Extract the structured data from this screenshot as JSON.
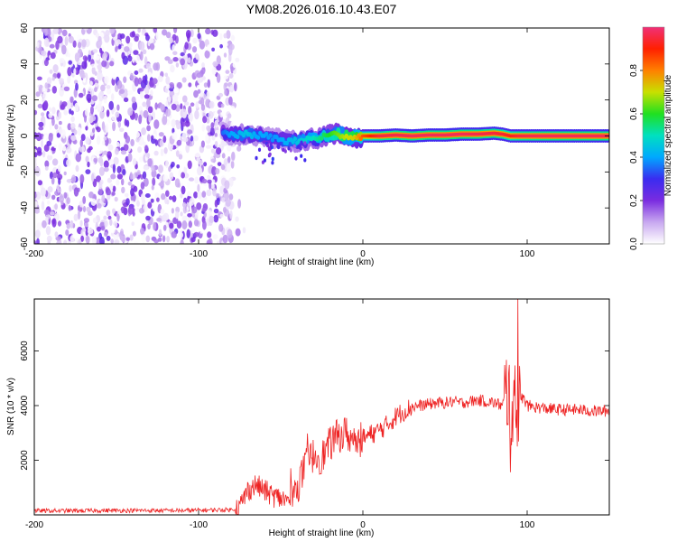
{
  "title": "YM08.2026.016.10.43.E07",
  "chart_data": [
    {
      "type": "heatmap",
      "title": "YM08.2026.016.10.43.E07",
      "xlabel": "Height of straight line (km)",
      "ylabel": "Frequency (Hz)",
      "xlim": [
        -200,
        150
      ],
      "ylim": [
        -60,
        60
      ],
      "xticks": [
        {
          "value": -200,
          "label": "-200"
        },
        {
          "value": -100,
          "label": "-100"
        },
        {
          "value": 0,
          "label": "0"
        },
        {
          "value": 100,
          "label": "100"
        }
      ],
      "yticks": [
        {
          "value": 60,
          "label": "60"
        },
        {
          "value": 40,
          "label": "40"
        },
        {
          "value": 20,
          "label": "20"
        },
        {
          "value": 0,
          "label": "0"
        },
        {
          "value": -20,
          "label": "-20"
        },
        {
          "value": -40,
          "label": "-40"
        },
        {
          "value": -60,
          "label": "-60"
        }
      ],
      "noise_region_km": [
        -200,
        -78
      ],
      "noise_amplitude_range": [
        0.0,
        0.25
      ],
      "ridge": [
        {
          "x": -85,
          "f": 1.5,
          "a": 0.35
        },
        {
          "x": -80,
          "f": 1.0,
          "a": 0.4
        },
        {
          "x": -75,
          "f": 0.5,
          "a": 0.42
        },
        {
          "x": -70,
          "f": 1.0,
          "a": 0.45
        },
        {
          "x": -65,
          "f": 0.5,
          "a": 0.4
        },
        {
          "x": -60,
          "f": 0.0,
          "a": 0.4
        },
        {
          "x": -55,
          "f": -1.0,
          "a": 0.38
        },
        {
          "x": -50,
          "f": -2.0,
          "a": 0.4
        },
        {
          "x": -45,
          "f": -3.0,
          "a": 0.42
        },
        {
          "x": -40,
          "f": -3.0,
          "a": 0.45
        },
        {
          "x": -35,
          "f": -2.0,
          "a": 0.48
        },
        {
          "x": -30,
          "f": -1.5,
          "a": 0.5
        },
        {
          "x": -25,
          "f": -0.5,
          "a": 0.55
        },
        {
          "x": -20,
          "f": 0.5,
          "a": 0.6
        },
        {
          "x": -15,
          "f": 1.0,
          "a": 0.65
        },
        {
          "x": -10,
          "f": 0.0,
          "a": 0.7
        },
        {
          "x": -5,
          "f": -1.0,
          "a": 0.72
        },
        {
          "x": 0,
          "f": 0.0,
          "a": 0.85
        },
        {
          "x": 10,
          "f": 0.0,
          "a": 0.95
        },
        {
          "x": 20,
          "f": 0.5,
          "a": 0.96
        },
        {
          "x": 30,
          "f": 0.0,
          "a": 0.97
        },
        {
          "x": 40,
          "f": 0.5,
          "a": 0.97
        },
        {
          "x": 50,
          "f": 0.5,
          "a": 0.97
        },
        {
          "x": 60,
          "f": 1.0,
          "a": 0.97
        },
        {
          "x": 70,
          "f": 1.0,
          "a": 0.96
        },
        {
          "x": 80,
          "f": 1.5,
          "a": 0.95
        },
        {
          "x": 85,
          "f": 1.0,
          "a": 0.94
        },
        {
          "x": 90,
          "f": 0.0,
          "a": 0.92
        },
        {
          "x": 95,
          "f": 0.0,
          "a": 0.95
        },
        {
          "x": 100,
          "f": 0.0,
          "a": 0.96
        },
        {
          "x": 110,
          "f": 0.0,
          "a": 0.97
        },
        {
          "x": 120,
          "f": 0.0,
          "a": 0.97
        },
        {
          "x": 130,
          "f": 0.0,
          "a": 0.97
        },
        {
          "x": 140,
          "f": 0.0,
          "a": 0.97
        },
        {
          "x": 150,
          "f": 0.0,
          "a": 0.97
        }
      ],
      "colorbar": {
        "label": "Normalized spectral amplitude",
        "range": [
          0.0,
          1.0
        ],
        "ticks": [
          {
            "value": 0.0,
            "label": "0.0"
          },
          {
            "value": 0.2,
            "label": "0.2"
          },
          {
            "value": 0.4,
            "label": "0.4"
          },
          {
            "value": 0.6,
            "label": "0.6"
          },
          {
            "value": 0.8,
            "label": "0.8"
          }
        ],
        "colors": [
          "#ffffff",
          "#c8a8f0",
          "#7a2ce0",
          "#3a2cf0",
          "#00a8ff",
          "#00e0c0",
          "#20e020",
          "#c8e000",
          "#ff8000",
          "#ff2000",
          "#f03078"
        ]
      }
    },
    {
      "type": "line",
      "xlabel": "Height of straight line (km)",
      "ylabel": "SNR (10 * v/v)",
      "xlim": [
        -200,
        150
      ],
      "ylim": [
        0,
        7900
      ],
      "xticks": [
        {
          "value": -200,
          "label": "-200"
        },
        {
          "value": -100,
          "label": "-100"
        },
        {
          "value": 0,
          "label": "0"
        },
        {
          "value": 100,
          "label": "100"
        }
      ],
      "yticks": [
        {
          "value": 2000,
          "label": "2000"
        },
        {
          "value": 4000,
          "label": "4000"
        },
        {
          "value": 6000,
          "label": "6000"
        }
      ],
      "color": "#ee2222",
      "series": [
        {
          "name": "SNR",
          "x": [
            -200,
            -190,
            -180,
            -170,
            -160,
            -150,
            -140,
            -130,
            -120,
            -110,
            -100,
            -90,
            -80,
            -75,
            -70,
            -65,
            -60,
            -55,
            -50,
            -45,
            -40,
            -35,
            -30,
            -25,
            -20,
            -15,
            -10,
            -5,
            0,
            5,
            10,
            15,
            20,
            25,
            30,
            35,
            40,
            45,
            50,
            55,
            60,
            65,
            70,
            75,
            80,
            85,
            88,
            90,
            92,
            94,
            96,
            100,
            110,
            120,
            130,
            140,
            150
          ],
          "y": [
            150,
            150,
            150,
            150,
            160,
            160,
            160,
            160,
            160,
            160,
            170,
            180,
            190,
            300,
            900,
            1100,
            900,
            700,
            600,
            500,
            1000,
            1800,
            2200,
            2100,
            2600,
            2900,
            3000,
            2600,
            2800,
            2950,
            3100,
            3300,
            3600,
            3800,
            3950,
            4000,
            4050,
            4100,
            4100,
            4150,
            4100,
            4150,
            4200,
            4150,
            4100,
            4000,
            4800,
            3000,
            5200,
            3000,
            4400,
            4000,
            3900,
            3850,
            3850,
            3800,
            3800
          ]
        }
      ],
      "burst_at_km": [
        86,
        96
      ]
    }
  ]
}
